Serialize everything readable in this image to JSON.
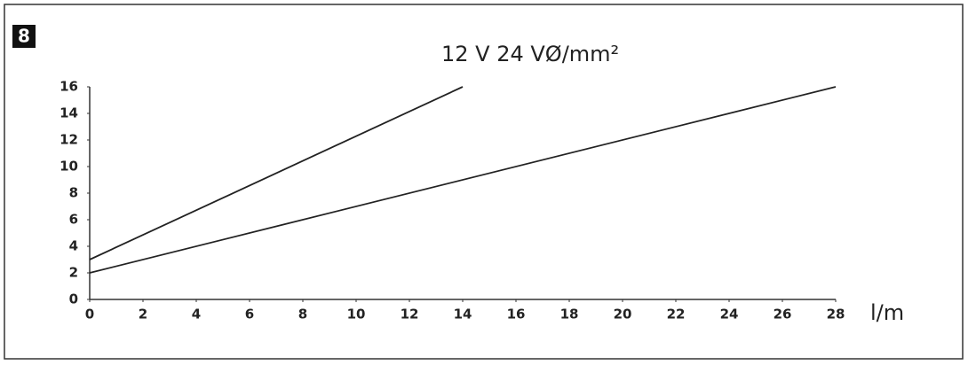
{
  "chart_data": {
    "type": "line",
    "figure_label": "8",
    "title": "12 V 24 VØ/mm²",
    "xlabel": "l/m",
    "series": [
      {
        "color": "#222222",
        "x": [
          0,
          14
        ],
        "values": [
          3,
          16
        ]
      },
      {
        "color": "#222222",
        "x": [
          0,
          28
        ],
        "values": [
          2,
          16
        ]
      }
    ],
    "xlim": [
      0,
      28
    ],
    "xticks": [
      0,
      2,
      4,
      6,
      8,
      10,
      12,
      14,
      16,
      18,
      20,
      22,
      24,
      26,
      28
    ],
    "ylim": [
      0,
      16
    ],
    "yticks": [
      0,
      2,
      4,
      6,
      8,
      10,
      12,
      14,
      16
    ],
    "grid": false
  }
}
